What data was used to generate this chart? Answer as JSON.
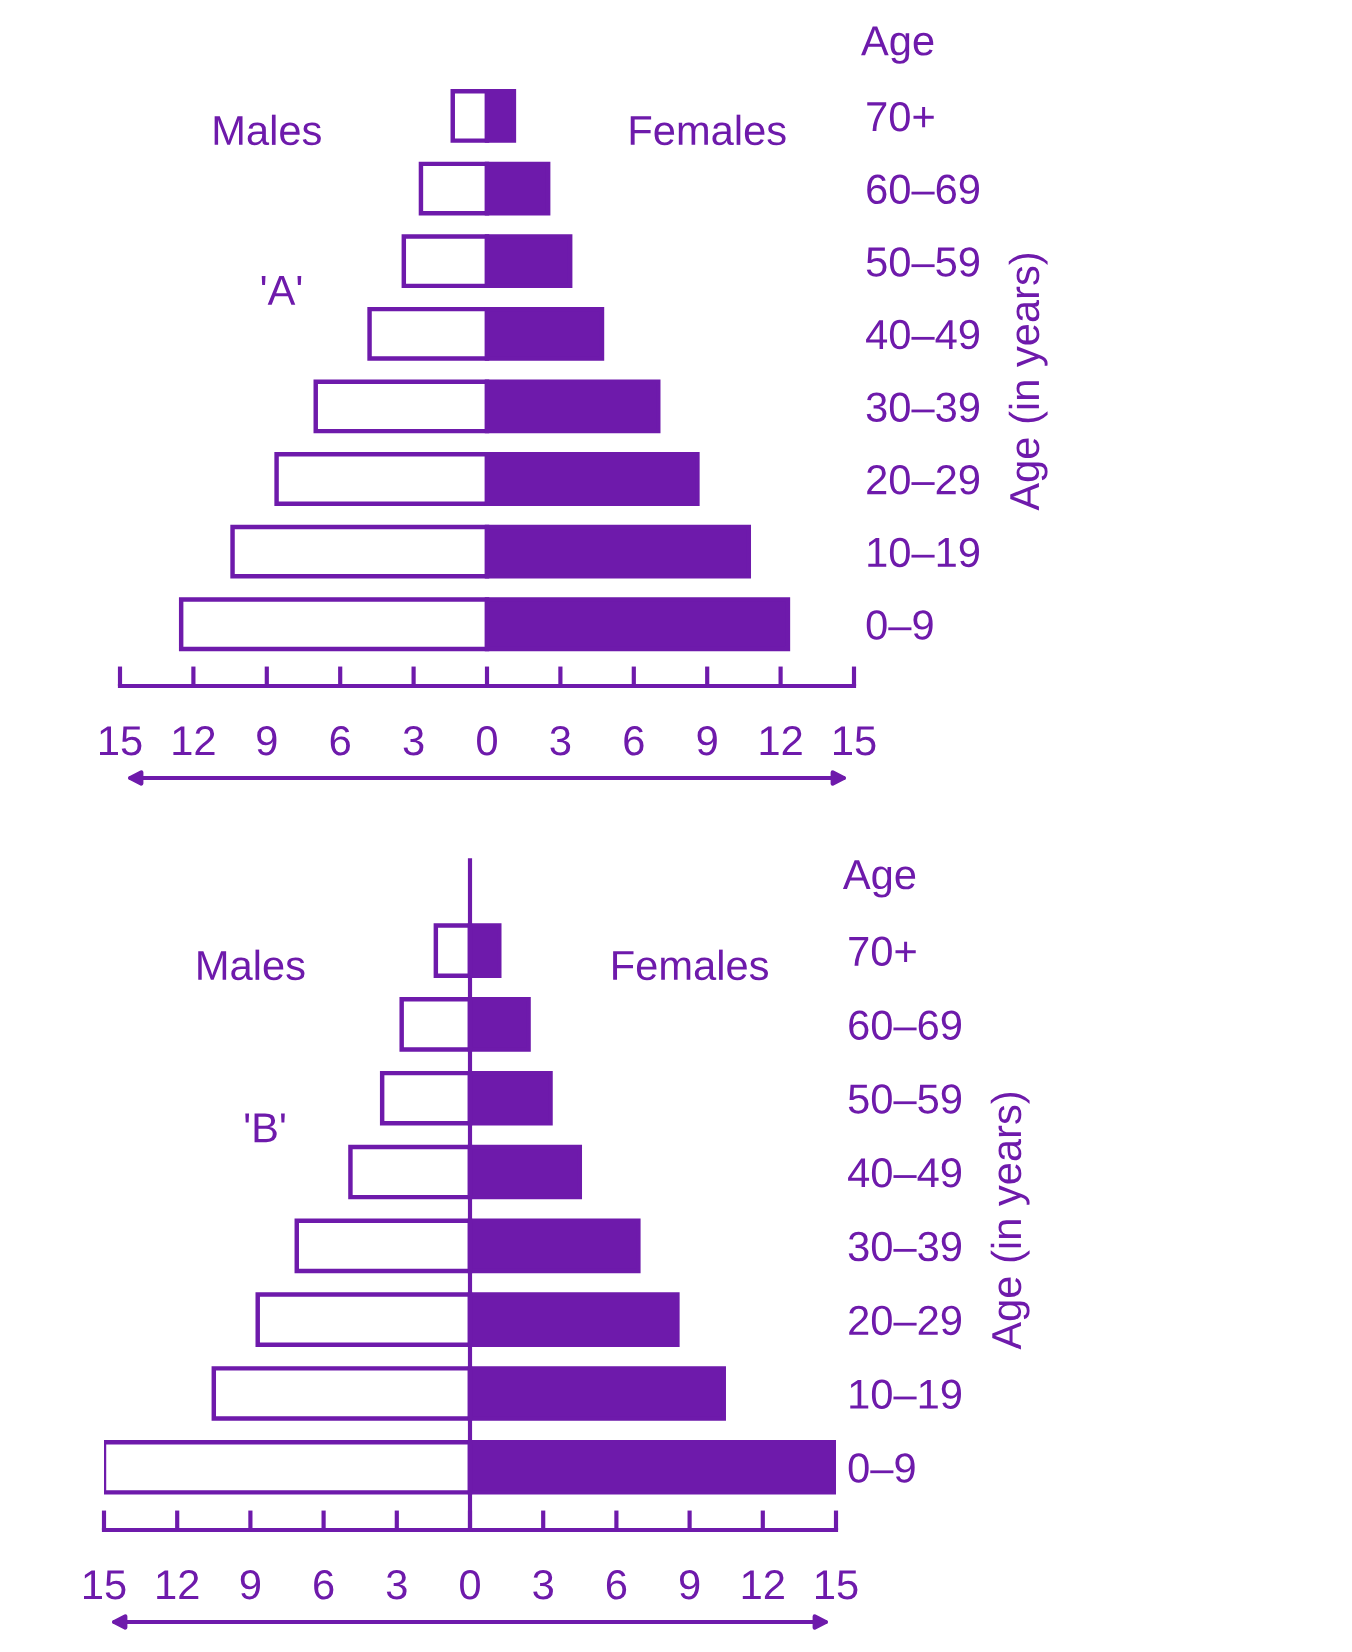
{
  "chart_data": [
    {
      "type": "bar",
      "orientation": "horizontal",
      "categories": [
        "70+",
        "60–69",
        "50–59",
        "40–49",
        "30–39",
        "20–29",
        "10–19",
        "0–9"
      ],
      "series": [
        {
          "name": "Males",
          "color": "#ffffff",
          "values": [
            -1.4,
            -2.7,
            -3.4,
            -4.8,
            -7.0,
            -8.6,
            -10.4,
            -12.5
          ]
        },
        {
          "name": "Females",
          "color": "#6e1aab",
          "values": [
            1.1,
            2.5,
            3.4,
            4.7,
            7.0,
            8.6,
            10.7,
            12.3
          ]
        }
      ],
      "xlim": [
        -15,
        15
      ],
      "xticks": [
        {
          "value": -15,
          "label": "15"
        },
        {
          "value": -12,
          "label": "12"
        },
        {
          "value": -9,
          "label": "9"
        },
        {
          "value": -6,
          "label": "6"
        },
        {
          "value": -3,
          "label": "3"
        },
        0,
        3,
        6,
        9,
        12,
        15
      ],
      "ylabel": "Age (in years)",
      "stacked": true,
      "annotations": [
        "'A'",
        "Age"
      ],
      "grid": false,
      "legend": false
    },
    {
      "type": "bar",
      "orientation": "horizontal",
      "categories": [
        "70+",
        "60–69",
        "50–59",
        "40–49",
        "30–39",
        "20–29",
        "10–19",
        "0–9"
      ],
      "series": [
        {
          "name": "Males",
          "color": "#ffffff",
          "values": [
            -1.4,
            -2.8,
            -3.6,
            -4.9,
            -7.1,
            -8.7,
            -10.5,
            -15
          ]
        },
        {
          "name": "Females",
          "color": "#6e1aab",
          "values": [
            1.2,
            2.4,
            3.3,
            4.5,
            6.9,
            8.5,
            10.4,
            15
          ]
        }
      ],
      "xlim": [
        -15,
        15
      ],
      "xticks": [
        {
          "value": -15,
          "label": "15"
        },
        {
          "value": -12,
          "label": "12"
        },
        {
          "value": -9,
          "label": "9"
        },
        {
          "value": -6,
          "label": "6"
        },
        {
          "value": -3,
          "label": "3"
        },
        0,
        3,
        6,
        9,
        12,
        15
      ],
      "ylabel": "Age (in years)",
      "stacked": true,
      "annotations": [
        "'B'",
        "Age"
      ],
      "ref_lines": [
        {
          "axis": "x",
          "value": 0,
          "color": "#6e1aab"
        }
      ],
      "grid": false,
      "legend": false
    }
  ]
}
